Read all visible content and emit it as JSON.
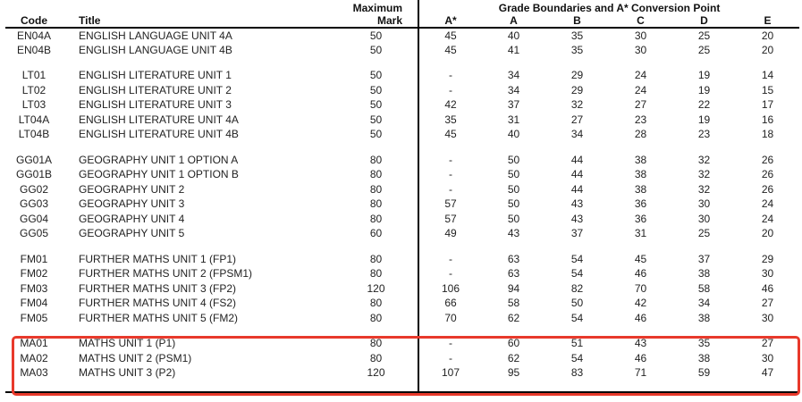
{
  "document": {
    "header": {
      "col_code": "Code",
      "col_title": "Title",
      "col_max_line1": "Maximum",
      "col_max_line2": "Mark",
      "grade_section_title": "Grade Boundaries and A* Conversion Point",
      "grade_columns": [
        "A*",
        "A",
        "B",
        "C",
        "D",
        "E"
      ]
    },
    "groups": [
      {
        "name": "english-language",
        "highlighted": false,
        "rows": [
          {
            "code": "EN04A",
            "title": "ENGLISH LANGUAGE UNIT 4A",
            "max": "50",
            "grades": [
              "45",
              "40",
              "35",
              "30",
              "25",
              "20"
            ]
          },
          {
            "code": "EN04B",
            "title": "ENGLISH LANGUAGE UNIT 4B",
            "max": "50",
            "grades": [
              "45",
              "41",
              "35",
              "30",
              "25",
              "20"
            ]
          }
        ]
      },
      {
        "name": "english-literature",
        "highlighted": false,
        "rows": [
          {
            "code": "LT01",
            "title": "ENGLISH LITERATURE UNIT 1",
            "max": "50",
            "grades": [
              "-",
              "34",
              "29",
              "24",
              "19",
              "14"
            ]
          },
          {
            "code": "LT02",
            "title": "ENGLISH LITERATURE UNIT 2",
            "max": "50",
            "grades": [
              "-",
              "34",
              "29",
              "24",
              "19",
              "15"
            ]
          },
          {
            "code": "LT03",
            "title": "ENGLISH LITERATURE UNIT 3",
            "max": "50",
            "grades": [
              "42",
              "37",
              "32",
              "27",
              "22",
              "17"
            ]
          },
          {
            "code": "LT04A",
            "title": "ENGLISH LITERATURE UNIT 4A",
            "max": "50",
            "grades": [
              "35",
              "31",
              "27",
              "23",
              "19",
              "16"
            ]
          },
          {
            "code": "LT04B",
            "title": "ENGLISH LITERATURE UNIT 4B",
            "max": "50",
            "grades": [
              "45",
              "40",
              "34",
              "28",
              "23",
              "18"
            ]
          }
        ]
      },
      {
        "name": "geography",
        "highlighted": false,
        "rows": [
          {
            "code": "GG01A",
            "title": "GEOGRAPHY UNIT 1 OPTION A",
            "max": "80",
            "grades": [
              "-",
              "50",
              "44",
              "38",
              "32",
              "26"
            ]
          },
          {
            "code": "GG01B",
            "title": "GEOGRAPHY UNIT 1 OPTION B",
            "max": "80",
            "grades": [
              "-",
              "50",
              "44",
              "38",
              "32",
              "26"
            ]
          },
          {
            "code": "GG02",
            "title": "GEOGRAPHY UNIT 2",
            "max": "80",
            "grades": [
              "-",
              "50",
              "44",
              "38",
              "32",
              "26"
            ]
          },
          {
            "code": "GG03",
            "title": "GEOGRAPHY UNIT 3",
            "max": "80",
            "grades": [
              "57",
              "50",
              "43",
              "36",
              "30",
              "24"
            ]
          },
          {
            "code": "GG04",
            "title": "GEOGRAPHY UNIT 4",
            "max": "80",
            "grades": [
              "57",
              "50",
              "43",
              "36",
              "30",
              "24"
            ]
          },
          {
            "code": "GG05",
            "title": "GEOGRAPHY UNIT 5",
            "max": "60",
            "grades": [
              "49",
              "43",
              "37",
              "31",
              "25",
              "20"
            ]
          }
        ]
      },
      {
        "name": "further-maths",
        "highlighted": false,
        "rows": [
          {
            "code": "FM01",
            "title": "FURTHER MATHS UNIT 1 (FP1)",
            "max": "80",
            "grades": [
              "-",
              "63",
              "54",
              "45",
              "37",
              "29"
            ]
          },
          {
            "code": "FM02",
            "title": "FURTHER MATHS UNIT 2 (FPSM1)",
            "max": "80",
            "grades": [
              "-",
              "63",
              "54",
              "46",
              "38",
              "30"
            ]
          },
          {
            "code": "FM03",
            "title": "FURTHER MATHS UNIT 3 (FP2)",
            "max": "120",
            "grades": [
              "106",
              "94",
              "82",
              "70",
              "58",
              "46"
            ]
          },
          {
            "code": "FM04",
            "title": "FURTHER MATHS UNIT 4 (FS2)",
            "max": "80",
            "grades": [
              "66",
              "58",
              "50",
              "42",
              "34",
              "27"
            ]
          },
          {
            "code": "FM05",
            "title": "FURTHER MATHS UNIT 5 (FM2)",
            "max": "80",
            "grades": [
              "70",
              "62",
              "54",
              "46",
              "38",
              "30"
            ]
          }
        ]
      },
      {
        "name": "maths",
        "highlighted": true,
        "rows": [
          {
            "code": "MA01",
            "title": "MATHS UNIT 1 (P1)",
            "max": "80",
            "grades": [
              "-",
              "60",
              "51",
              "43",
              "35",
              "27"
            ]
          },
          {
            "code": "MA02",
            "title": "MATHS UNIT 2 (PSM1)",
            "max": "80",
            "grades": [
              "-",
              "62",
              "54",
              "46",
              "38",
              "30"
            ]
          },
          {
            "code": "MA03",
            "title": "MATHS UNIT 3 (P2)",
            "max": "120",
            "grades": [
              "107",
              "95",
              "83",
              "71",
              "59",
              "47"
            ]
          }
        ]
      }
    ],
    "highlight": {
      "color": "#e8392b",
      "shape": "rounded-rectangle"
    }
  }
}
